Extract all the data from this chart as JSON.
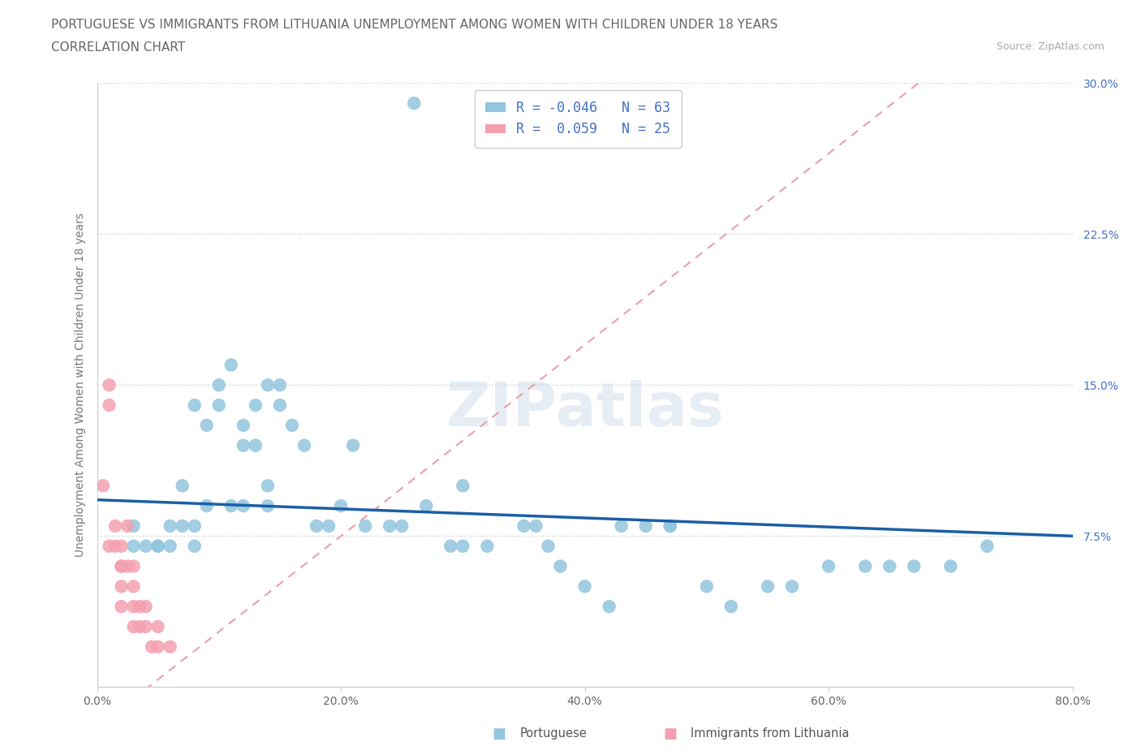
{
  "title_line1": "PORTUGUESE VS IMMIGRANTS FROM LITHUANIA UNEMPLOYMENT AMONG WOMEN WITH CHILDREN UNDER 18 YEARS",
  "title_line2": "CORRELATION CHART",
  "source": "Source: ZipAtlas.com",
  "ylabel": "Unemployment Among Women with Children Under 18 years",
  "xlim": [
    0.0,
    0.8
  ],
  "ylim": [
    0.0,
    0.3
  ],
  "xtick_vals": [
    0.0,
    0.2,
    0.4,
    0.6,
    0.8
  ],
  "xtick_labels": [
    "0.0%",
    "20.0%",
    "40.0%",
    "60.0%",
    "80.0%"
  ],
  "ytick_vals": [
    0.0,
    0.075,
    0.15,
    0.225,
    0.3
  ],
  "ytick_labels": [
    "",
    "7.5%",
    "15.0%",
    "22.5%",
    "30.0%"
  ],
  "R_portuguese": -0.046,
  "N_portuguese": 63,
  "R_lithuania": 0.059,
  "N_lithuania": 25,
  "color_portuguese": "#92c5de",
  "color_lithuania": "#f4a0b0",
  "trendline_portuguese_color": "#1a5fa6",
  "trendline_lithuania_color": "#e8a0aa",
  "watermark": "ZIPatlas",
  "portuguese_trendline": [
    0.093,
    0.075
  ],
  "lithuania_trendline": [
    -0.02,
    0.36
  ],
  "portuguese_x": [
    0.03,
    0.03,
    0.04,
    0.05,
    0.05,
    0.06,
    0.06,
    0.07,
    0.07,
    0.08,
    0.08,
    0.08,
    0.09,
    0.09,
    0.1,
    0.1,
    0.11,
    0.11,
    0.12,
    0.12,
    0.12,
    0.13,
    0.13,
    0.14,
    0.14,
    0.14,
    0.15,
    0.15,
    0.16,
    0.17,
    0.18,
    0.19,
    0.2,
    0.21,
    0.22,
    0.24,
    0.25,
    0.27,
    0.29,
    0.3,
    0.3,
    0.32,
    0.35,
    0.36,
    0.37,
    0.38,
    0.4,
    0.42,
    0.43,
    0.45,
    0.47,
    0.47,
    0.5,
    0.52,
    0.55,
    0.57,
    0.6,
    0.63,
    0.65,
    0.67,
    0.7,
    0.73,
    0.26
  ],
  "portuguese_y": [
    0.08,
    0.07,
    0.07,
    0.07,
    0.07,
    0.08,
    0.07,
    0.1,
    0.08,
    0.14,
    0.08,
    0.07,
    0.13,
    0.09,
    0.15,
    0.14,
    0.16,
    0.09,
    0.13,
    0.12,
    0.09,
    0.14,
    0.12,
    0.15,
    0.1,
    0.09,
    0.15,
    0.14,
    0.13,
    0.12,
    0.08,
    0.08,
    0.09,
    0.12,
    0.08,
    0.08,
    0.08,
    0.09,
    0.07,
    0.1,
    0.07,
    0.07,
    0.08,
    0.08,
    0.07,
    0.06,
    0.05,
    0.04,
    0.08,
    0.08,
    0.08,
    0.08,
    0.05,
    0.04,
    0.05,
    0.05,
    0.06,
    0.06,
    0.06,
    0.06,
    0.06,
    0.07,
    0.29
  ],
  "lithuania_x": [
    0.005,
    0.01,
    0.01,
    0.01,
    0.015,
    0.015,
    0.02,
    0.02,
    0.02,
    0.02,
    0.02,
    0.025,
    0.025,
    0.03,
    0.03,
    0.03,
    0.03,
    0.035,
    0.035,
    0.04,
    0.04,
    0.045,
    0.05,
    0.05,
    0.06
  ],
  "lithuania_y": [
    0.1,
    0.15,
    0.14,
    0.07,
    0.08,
    0.07,
    0.07,
    0.06,
    0.06,
    0.05,
    0.04,
    0.08,
    0.06,
    0.06,
    0.05,
    0.04,
    0.03,
    0.04,
    0.03,
    0.04,
    0.03,
    0.02,
    0.03,
    0.02,
    0.02
  ]
}
